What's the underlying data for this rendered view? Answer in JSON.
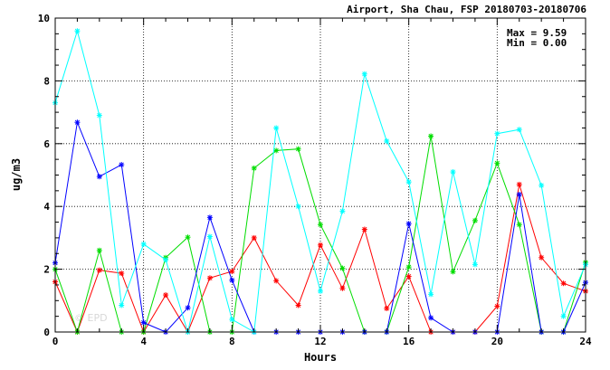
{
  "chart_data": {
    "type": "line",
    "title": "Airport, Sha Chau, FSP 20180703-20180706",
    "xlabel": "Hours",
    "ylabel": "ug/m3",
    "xlim": [
      0,
      24
    ],
    "ylim": [
      0,
      10
    ],
    "x_ticks": [
      0,
      4,
      8,
      12,
      16,
      20,
      24
    ],
    "y_ticks": [
      0,
      2,
      4,
      6,
      8,
      10
    ],
    "grid": "dotted, major ticks",
    "stats": {
      "max_label": "Max = 9.59",
      "min_label": "Min = 0.00"
    },
    "watermark": "© EPD",
    "x": [
      0,
      1,
      2,
      3,
      4,
      5,
      6,
      7,
      8,
      9,
      10,
      11,
      12,
      13,
      14,
      15,
      16,
      17,
      18,
      19,
      20,
      21,
      22,
      23,
      24
    ],
    "series": [
      {
        "color": "#ff0000",
        "values": [
          1.6,
          0.0,
          1.97,
          1.87,
          0.0,
          1.18,
          0.0,
          1.72,
          1.93,
          3.0,
          1.63,
          0.85,
          2.77,
          1.39,
          3.27,
          0.75,
          1.77,
          0.0,
          0.0,
          0.0,
          0.82,
          4.7,
          2.37,
          1.55,
          1.3
        ]
      },
      {
        "color": "#00dd00",
        "values": [
          2.0,
          0.0,
          2.6,
          0.0,
          0.0,
          2.37,
          3.02,
          0.0,
          0.0,
          5.22,
          5.78,
          5.83,
          3.42,
          2.03,
          0.0,
          0.0,
          2.07,
          6.24,
          1.92,
          3.55,
          5.38,
          3.42,
          0.0,
          0.0,
          2.22
        ]
      },
      {
        "color": "#0000ff",
        "values": [
          2.2,
          6.68,
          4.95,
          5.33,
          0.3,
          0.0,
          0.77,
          3.65,
          1.65,
          0.0,
          0.0,
          0.0,
          0.0,
          0.0,
          0.0,
          0.0,
          3.45,
          0.45,
          0.0,
          0.0,
          0.0,
          4.38,
          0.0,
          0.0,
          1.58
        ]
      },
      {
        "color": "#00ffff",
        "values": [
          7.3,
          9.59,
          6.9,
          0.85,
          2.8,
          2.3,
          0.0,
          3.04,
          0.4,
          0.0,
          6.5,
          4.0,
          1.3,
          3.85,
          8.22,
          6.08,
          4.78,
          1.2,
          5.1,
          2.15,
          6.32,
          6.45,
          4.67,
          0.5,
          2.15
        ]
      }
    ]
  }
}
